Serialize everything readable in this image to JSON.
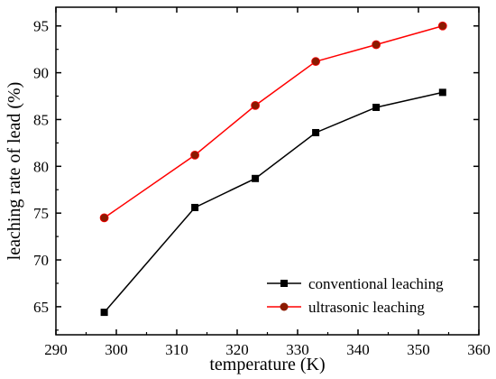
{
  "chart_data": {
    "type": "line",
    "title": "",
    "xlabel": "temperature (K)",
    "ylabel": "leaching rate of lead (%)",
    "xlim": [
      290,
      360
    ],
    "ylim": [
      62,
      97
    ],
    "xticks": [
      290,
      300,
      310,
      320,
      330,
      340,
      350,
      360
    ],
    "yticks": [
      65,
      70,
      75,
      80,
      85,
      90,
      95
    ],
    "grid": false,
    "legend_position": "bottom-right",
    "series": [
      {
        "name": "conventional leaching",
        "color": "#000000",
        "marker": "square",
        "x": [
          298,
          313,
          323,
          333,
          343,
          354
        ],
        "y": [
          64.4,
          75.6,
          78.7,
          83.6,
          86.3,
          87.9
        ]
      },
      {
        "name": "ultrasonic leaching",
        "color": "#ff0000",
        "marker_color": "#8b1a00",
        "marker": "circle",
        "x": [
          298,
          313,
          323,
          333,
          343,
          354
        ],
        "y": [
          74.5,
          81.2,
          86.5,
          91.2,
          93.0,
          95.0
        ]
      }
    ]
  }
}
